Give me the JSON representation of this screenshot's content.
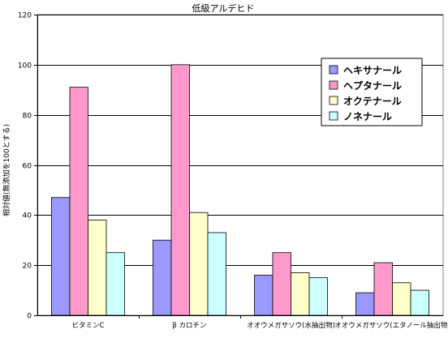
{
  "chart_data": {
    "type": "bar",
    "title": "低級アルデヒド",
    "ylabel": "相対値(無添加を100とする)",
    "xlabel": "",
    "categories": [
      "ビタミンC",
      "β カロチン",
      "オオウメガサソウ(水抽出物)",
      "オオウメガサソウ(エタノール抽出物)"
    ],
    "series": [
      {
        "name": "ヘキサナール",
        "color": "#9999ff",
        "values": [
          47,
          30,
          16,
          9
        ]
      },
      {
        "name": "ヘプタナール",
        "color": "#ff99cc",
        "values": [
          91,
          100,
          25,
          21
        ]
      },
      {
        "name": "オクテナール",
        "color": "#ffffcc",
        "values": [
          38,
          41,
          17,
          13
        ]
      },
      {
        "name": "ノネナール",
        "color": "#ccffff",
        "values": [
          25,
          33,
          15,
          10
        ]
      }
    ],
    "ylim": [
      0,
      120
    ],
    "yticks": [
      0,
      20,
      40,
      60,
      80,
      100,
      120
    ],
    "grid": true,
    "legend_position": "top-right"
  }
}
